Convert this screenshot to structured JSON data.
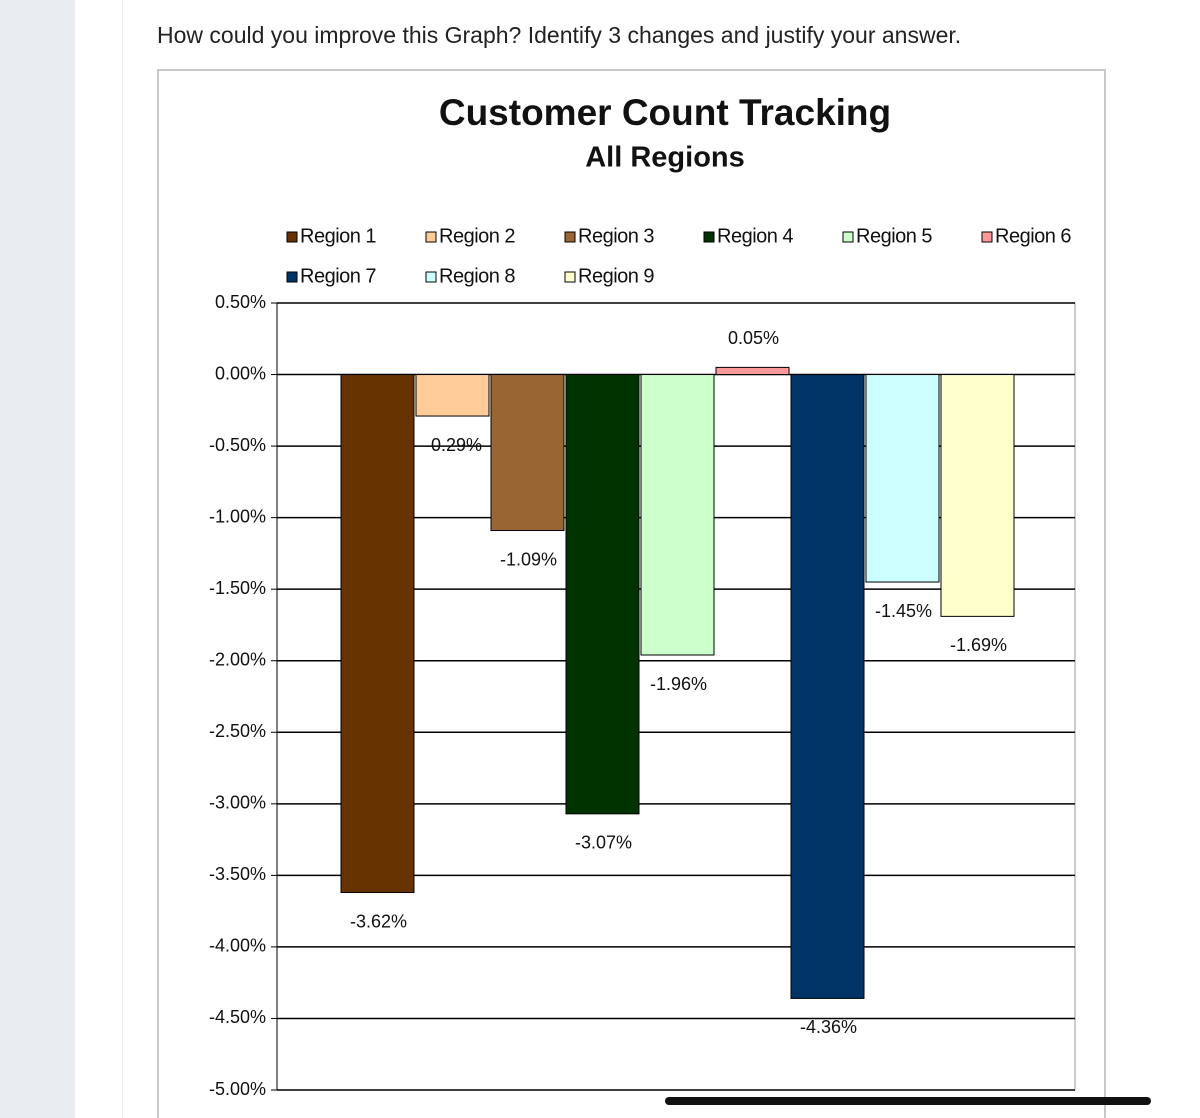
{
  "question": "How could you improve this Graph? Identify 3 changes and justify your answer.",
  "chart_data": {
    "type": "bar",
    "title": "Customer Count Tracking",
    "subtitle": "All Regions",
    "ylim": [
      -5,
      0.5
    ],
    "yticks": [
      {
        "value": 0.5,
        "label": "0.50%"
      },
      {
        "value": 0,
        "label": "0.00%"
      },
      {
        "value": -0.5,
        "label": "-0.50%"
      },
      {
        "value": -1,
        "label": "-1.00%"
      },
      {
        "value": -1.5,
        "label": "-1.50%"
      },
      {
        "value": -2,
        "label": "-2.00%"
      },
      {
        "value": -2.5,
        "label": "-2.50%"
      },
      {
        "value": -3,
        "label": "-3.00%"
      },
      {
        "value": -3.5,
        "label": "-3.50%"
      },
      {
        "value": -4,
        "label": "-4.00%"
      },
      {
        "value": -4.5,
        "label": "-4.50%"
      },
      {
        "value": -5,
        "label": "-5.00%"
      }
    ],
    "grid": true,
    "series": [
      {
        "name": "Region 1",
        "color": "#663300",
        "values": [
          -3.62
        ],
        "value_labels": [
          "-3.62%"
        ]
      },
      {
        "name": "Region 2",
        "color": "#ffcc99",
        "values": [
          -0.29
        ],
        "value_labels": [
          "-0.29%"
        ]
      },
      {
        "name": "Region 3",
        "color": "#996633",
        "values": [
          -1.09
        ],
        "value_labels": [
          "-1.09%"
        ]
      },
      {
        "name": "Region 4",
        "color": "#003300",
        "values": [
          -3.07
        ],
        "value_labels": [
          "-3.07%"
        ]
      },
      {
        "name": "Region 5",
        "color": "#ccffcc",
        "values": [
          -1.96
        ],
        "value_labels": [
          "-1.96%"
        ]
      },
      {
        "name": "Region 6",
        "color": "#ff9999",
        "values": [
          0.05
        ],
        "value_labels": [
          "0.05%"
        ]
      },
      {
        "name": "Region 7",
        "color": "#003366",
        "values": [
          -4.36
        ],
        "value_labels": [
          "-4.36%"
        ]
      },
      {
        "name": "Region 8",
        "color": "#ccffff",
        "values": [
          -1.45
        ],
        "value_labels": [
          "-1.45%"
        ]
      },
      {
        "name": "Region 9",
        "color": "#ffffcc",
        "values": [
          -1.69
        ],
        "value_labels": [
          "-1.69%"
        ]
      }
    ]
  }
}
